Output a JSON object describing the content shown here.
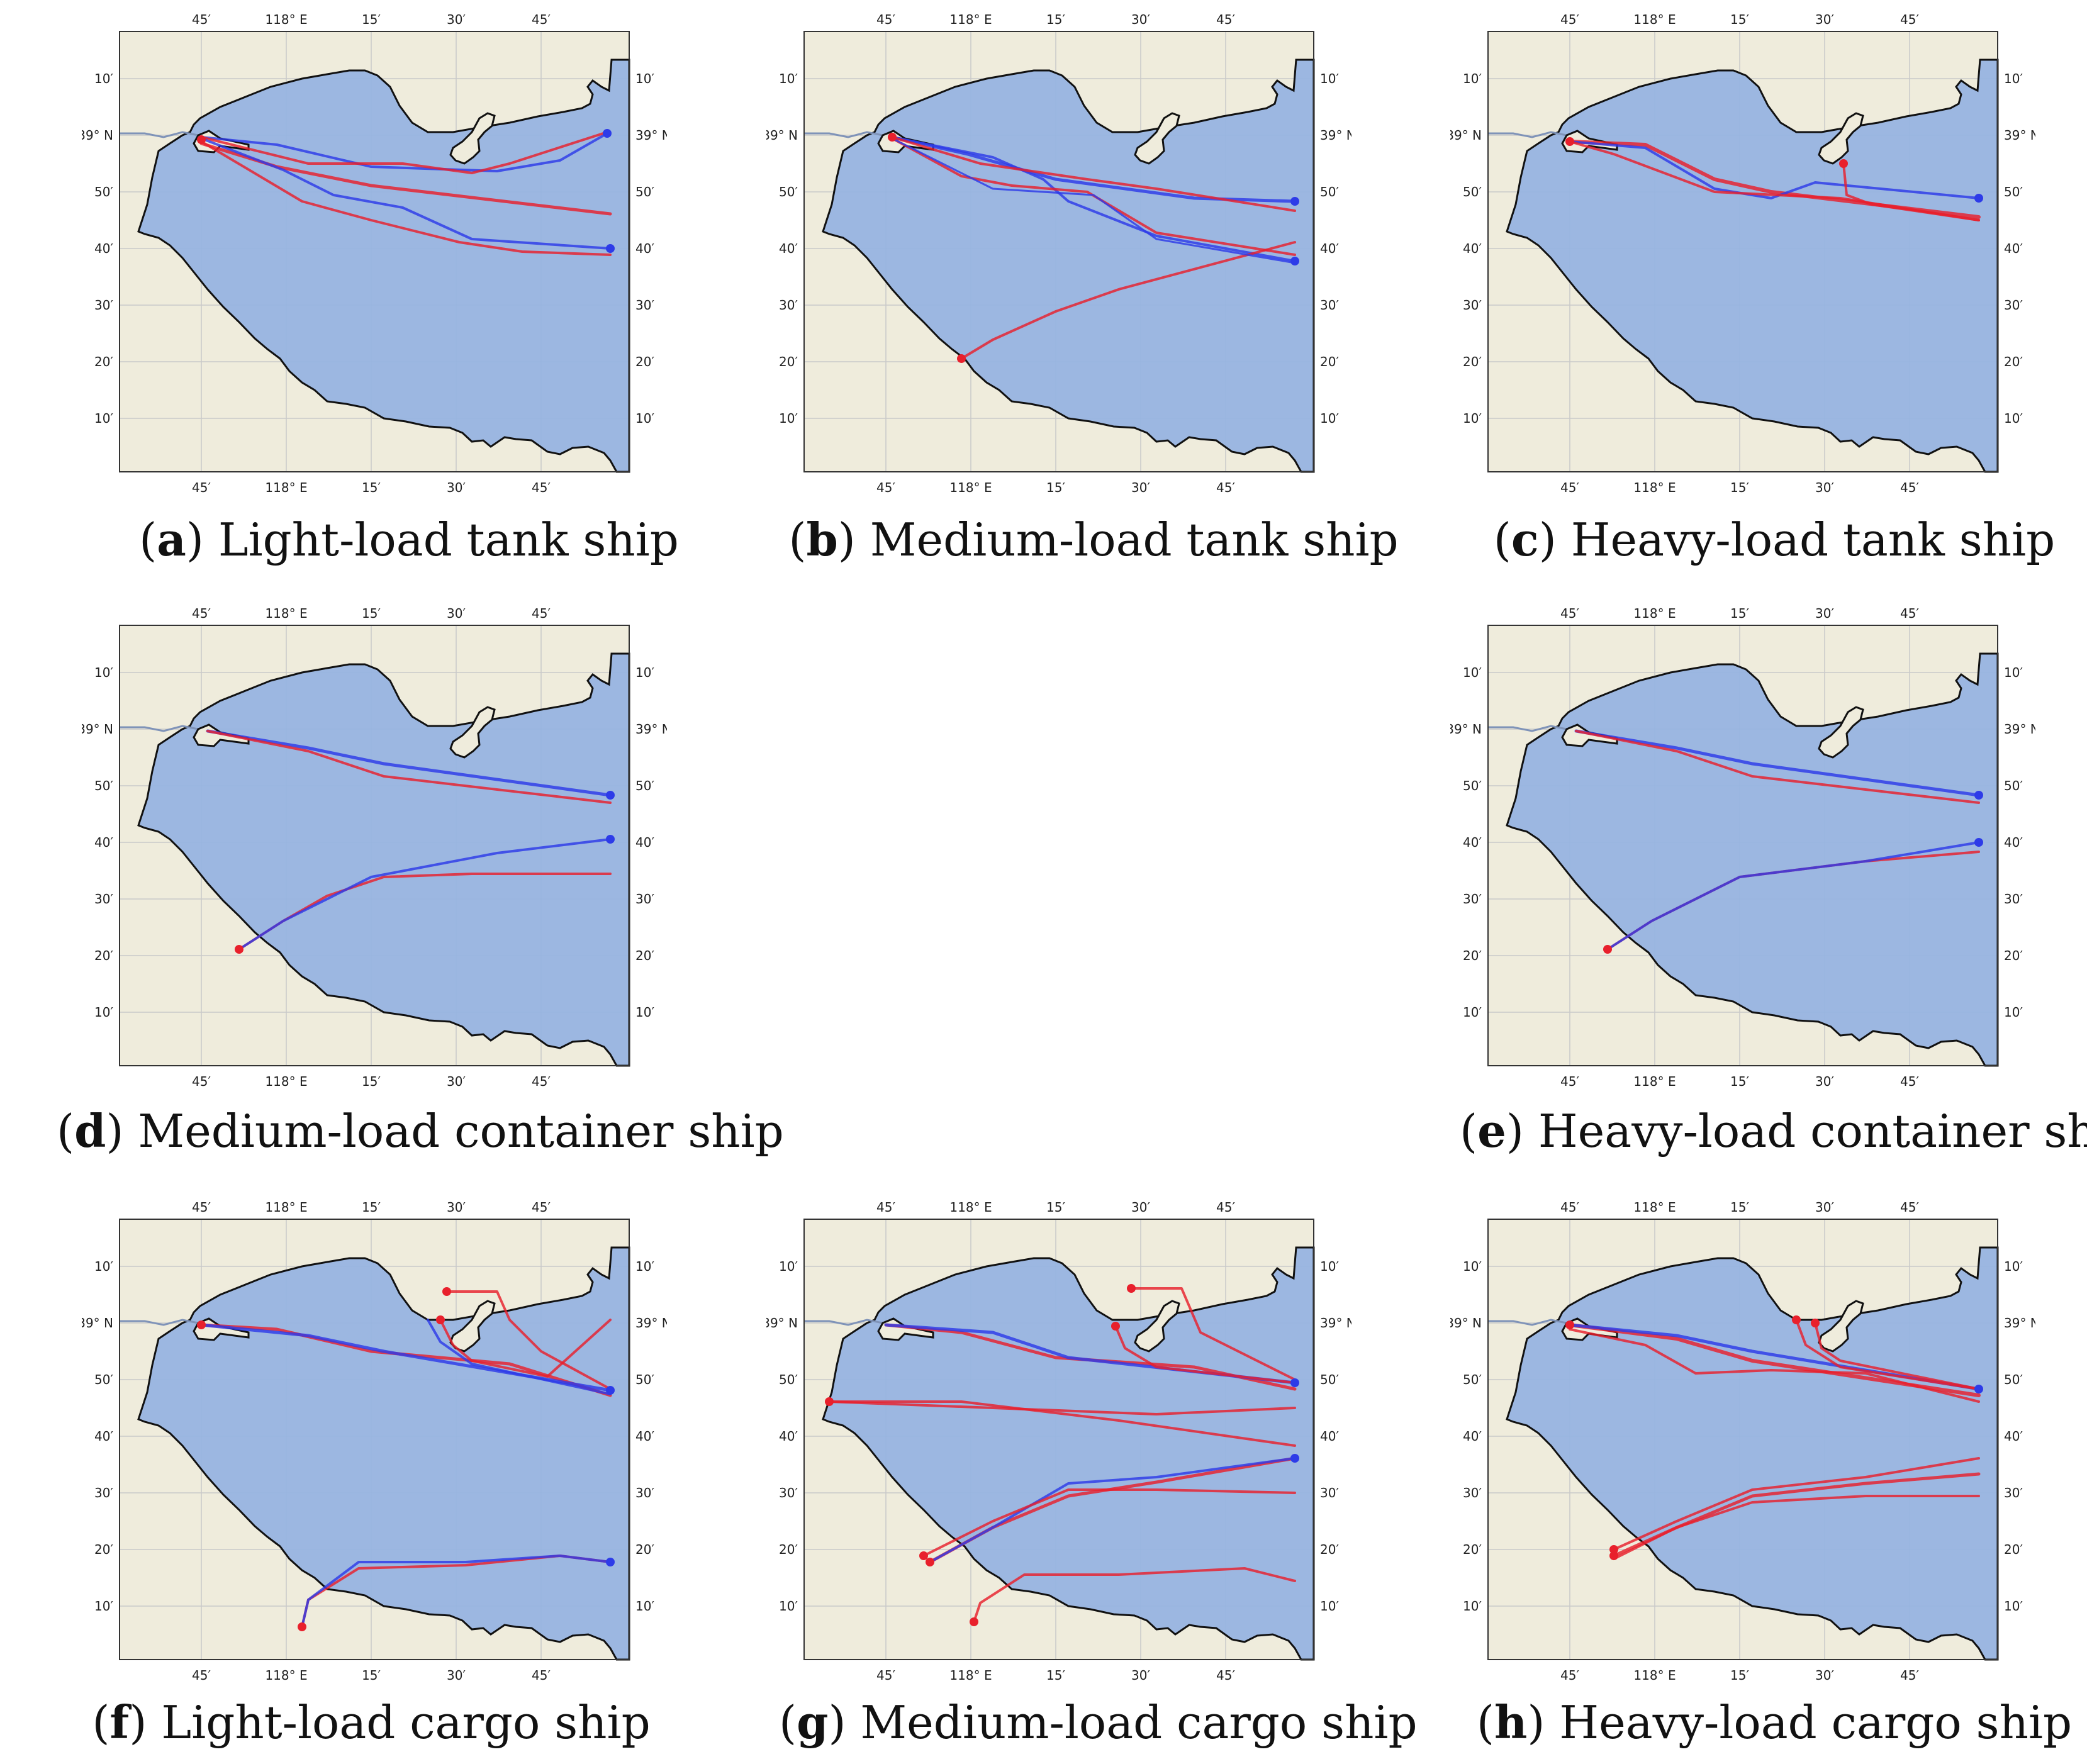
{
  "colors": {
    "land": "#efecdc",
    "sea": "#97b4e0",
    "coast": "#111111",
    "grid": "#c9c9c9",
    "route_predicted": "#e8202c",
    "route_actual": "#2d3be8",
    "river": "#7f93b8"
  },
  "axis_labels": {
    "lon": [
      "45′",
      "118° E",
      "15′",
      "30′",
      "45′"
    ],
    "lat": [
      "10′",
      "39° N",
      "50′",
      "40′",
      "30′",
      "20′",
      "10′"
    ]
  },
  "panels": [
    {
      "id": "a",
      "letter": "a",
      "title": "Light-load tank ship",
      "letter_bold": true
    },
    {
      "id": "b",
      "letter": "b",
      "title": "Medium-load tank ship",
      "letter_bold": true
    },
    {
      "id": "c",
      "letter": "c",
      "title": "Heavy-load tank ship",
      "letter_bold": true
    },
    {
      "id": "d",
      "letter": "d",
      "title": "Medium-load container ship",
      "letter_bold": true
    },
    {
      "id": "e",
      "letter": "e",
      "title": "Heavy-load container ship",
      "letter_bold": true
    },
    {
      "id": "f",
      "letter": "f",
      "title": "Light-load cargo ship",
      "letter_bold": true
    },
    {
      "id": "g",
      "letter": "g",
      "title": "Medium-load cargo ship",
      "letter_bold": true
    },
    {
      "id": "h",
      "letter": "h",
      "title": "Heavy-load cargo ship",
      "letter_bold": true
    }
  ]
}
